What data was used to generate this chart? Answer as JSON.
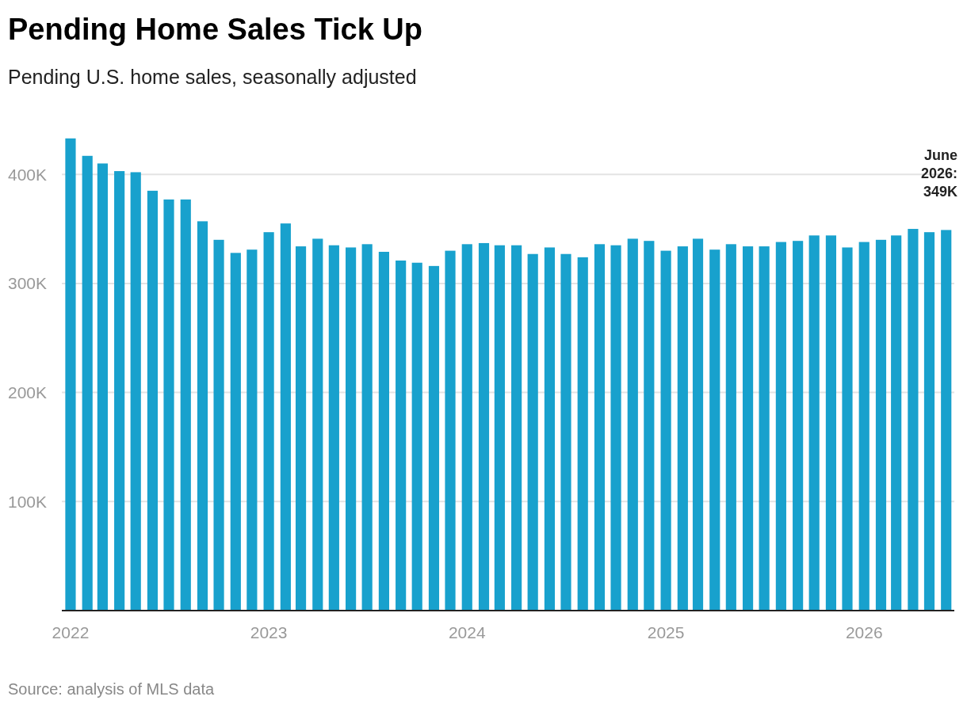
{
  "chart_data": {
    "type": "bar",
    "title": "Pending Home Sales Tick Up",
    "subtitle": "Pending U.S. home sales, seasonally adjusted",
    "annotations": [
      {
        "text": "June 2026: 349K",
        "x": "2026-06",
        "y": 349000
      },
      "Source: analysis of MLS data"
    ],
    "x": [
      "2022-01",
      "2022-02",
      "2022-03",
      "2022-04",
      "2022-05",
      "2022-06",
      "2022-07",
      "2022-08",
      "2022-09",
      "2022-10",
      "2022-11",
      "2022-12",
      "2023-01",
      "2023-02",
      "2023-03",
      "2023-04",
      "2023-05",
      "2023-06",
      "2023-07",
      "2023-08",
      "2023-09",
      "2023-10",
      "2023-11",
      "2023-12",
      "2024-01",
      "2024-02",
      "2024-03",
      "2024-04",
      "2024-05",
      "2024-06",
      "2024-07",
      "2024-08",
      "2024-09",
      "2024-10",
      "2024-11",
      "2024-12",
      "2025-01",
      "2025-02",
      "2025-03",
      "2025-04",
      "2025-05",
      "2025-06",
      "2025-07",
      "2025-08",
      "2025-09",
      "2025-10",
      "2025-11",
      "2025-12",
      "2026-01",
      "2026-02",
      "2026-03",
      "2026-04",
      "2026-05",
      "2026-06"
    ],
    "values": [
      433000,
      417000,
      410000,
      403000,
      402000,
      385000,
      377000,
      377000,
      357000,
      340000,
      328000,
      331000,
      347000,
      355000,
      334000,
      341000,
      335000,
      333000,
      336000,
      329000,
      321000,
      319000,
      316000,
      330000,
      336000,
      337000,
      335000,
      335000,
      327000,
      333000,
      327000,
      324000,
      336000,
      335000,
      341000,
      339000,
      330000,
      334000,
      341000,
      331000,
      336000,
      334000,
      334000,
      338000,
      339000,
      344000,
      344000,
      333000,
      338000,
      340000,
      344000,
      350000,
      347000,
      349000
    ],
    "color": "#18a1cd",
    "xlim": [
      "2021-12-16",
      "2026-06-16"
    ],
    "xticks": [
      {
        "value": "2022-01",
        "label": "2022"
      },
      {
        "value": "2023-01",
        "label": "2023"
      },
      {
        "value": "2024-01",
        "label": "2024"
      },
      {
        "value": "2025-01",
        "label": "2025"
      },
      {
        "value": "2026-01",
        "label": "2026"
      }
    ],
    "ylim": [
      0,
      435000
    ],
    "yticks": [
      {
        "value": 100000,
        "label": "100K"
      },
      {
        "value": 200000,
        "label": "200K"
      },
      {
        "value": 300000,
        "label": "300K"
      },
      {
        "value": 400000,
        "label": "400K"
      }
    ],
    "grid": "y"
  }
}
